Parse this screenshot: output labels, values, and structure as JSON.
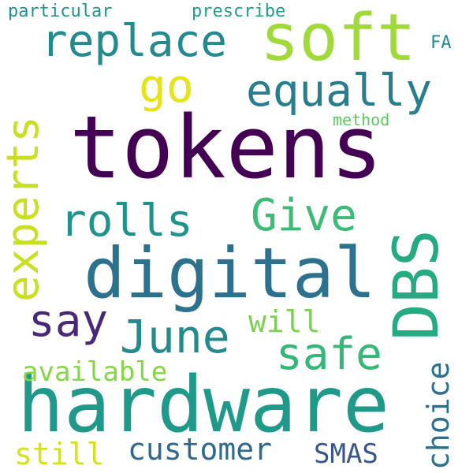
{
  "words": [
    {
      "text": "tokens",
      "color": "#440154"
    },
    {
      "text": "hardware",
      "color": "#1f9a8a"
    },
    {
      "text": "digital",
      "color": "#2c728e"
    },
    {
      "text": "soft",
      "color": "#a0da39"
    },
    {
      "text": "DBS",
      "color": "#25ab82"
    },
    {
      "text": "replace",
      "color": "#228b8d"
    },
    {
      "text": "equally",
      "color": "#287d8e"
    },
    {
      "text": "experts",
      "color": "#c8e020"
    },
    {
      "text": "rolls",
      "color": "#20928c"
    },
    {
      "text": "Give",
      "color": "#3bbb75"
    },
    {
      "text": "go",
      "color": "#e5e419"
    },
    {
      "text": "say",
      "color": "#482878"
    },
    {
      "text": "June",
      "color": "#238a8d"
    },
    {
      "text": "safe",
      "color": "#35b779"
    },
    {
      "text": "choice",
      "color": "#2d708e"
    },
    {
      "text": "customer",
      "color": "#31688e"
    },
    {
      "text": "will",
      "color": "#7ad151"
    },
    {
      "text": "available",
      "color": "#86d549"
    },
    {
      "text": "still",
      "color": "#d2e21b"
    },
    {
      "text": "SMAS",
      "color": "#39568c"
    },
    {
      "text": "method",
      "color": "#5ec962"
    },
    {
      "text": "particular",
      "color": "#1f948c"
    },
    {
      "text": "prescribe",
      "color": "#1f9e89"
    },
    {
      "text": "FA",
      "color": "#238a8d"
    }
  ]
}
